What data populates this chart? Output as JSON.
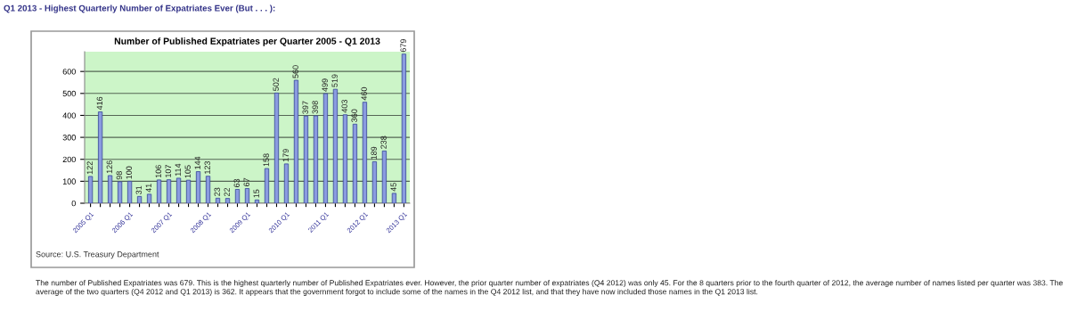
{
  "chart_data": {
    "type": "bar",
    "title": "Number of Published Expatriates per Quarter 2005 - Q1 2013",
    "categories": [
      "2005 Q1",
      null,
      null,
      null,
      "2006 Q1",
      null,
      null,
      null,
      "2007 Q1",
      null,
      null,
      null,
      "2008 Q1",
      null,
      null,
      null,
      "2009 Q1",
      null,
      null,
      null,
      "2010 Q1",
      null,
      null,
      null,
      "2011 Q1",
      null,
      null,
      null,
      "2012 Q1",
      null,
      null,
      null,
      "2013 Q1"
    ],
    "values": [
      122,
      416,
      126,
      98,
      100,
      31,
      41,
      106,
      107,
      114,
      105,
      144,
      123,
      23,
      22,
      63,
      67,
      15,
      158,
      502,
      179,
      560,
      397,
      398,
      499,
      519,
      403,
      360,
      460,
      189,
      238,
      45,
      679
    ],
    "color": "#8a9be0",
    "data_labels": true,
    "ylim": [
      0,
      690
    ],
    "yticks": [
      0,
      100,
      200,
      300,
      400,
      500,
      600
    ],
    "grid": "y",
    "legend": false,
    "annotations": [
      "Q1 2013 - Highest Quarterly Number of Expatriates Ever (But . . . ):",
      "Source: U.S. Treasury Department",
      "The number of Published Expatriates was 679. This is the highest quarterly number of Published Expatriates ever. However, the prior quarter number of expatriates (Q4 2012) was only 45. For the 8 quarters prior to the fourth quarter of 2012, the average number of names listed per quarter was 383. The average of the two quarters (Q4 2012 and Q1 2013) is 362. It appears that the government forgot to include some of the names in the Q4 2012 list, and that they have now included those names in the Q1 2013 list."
    ]
  }
}
